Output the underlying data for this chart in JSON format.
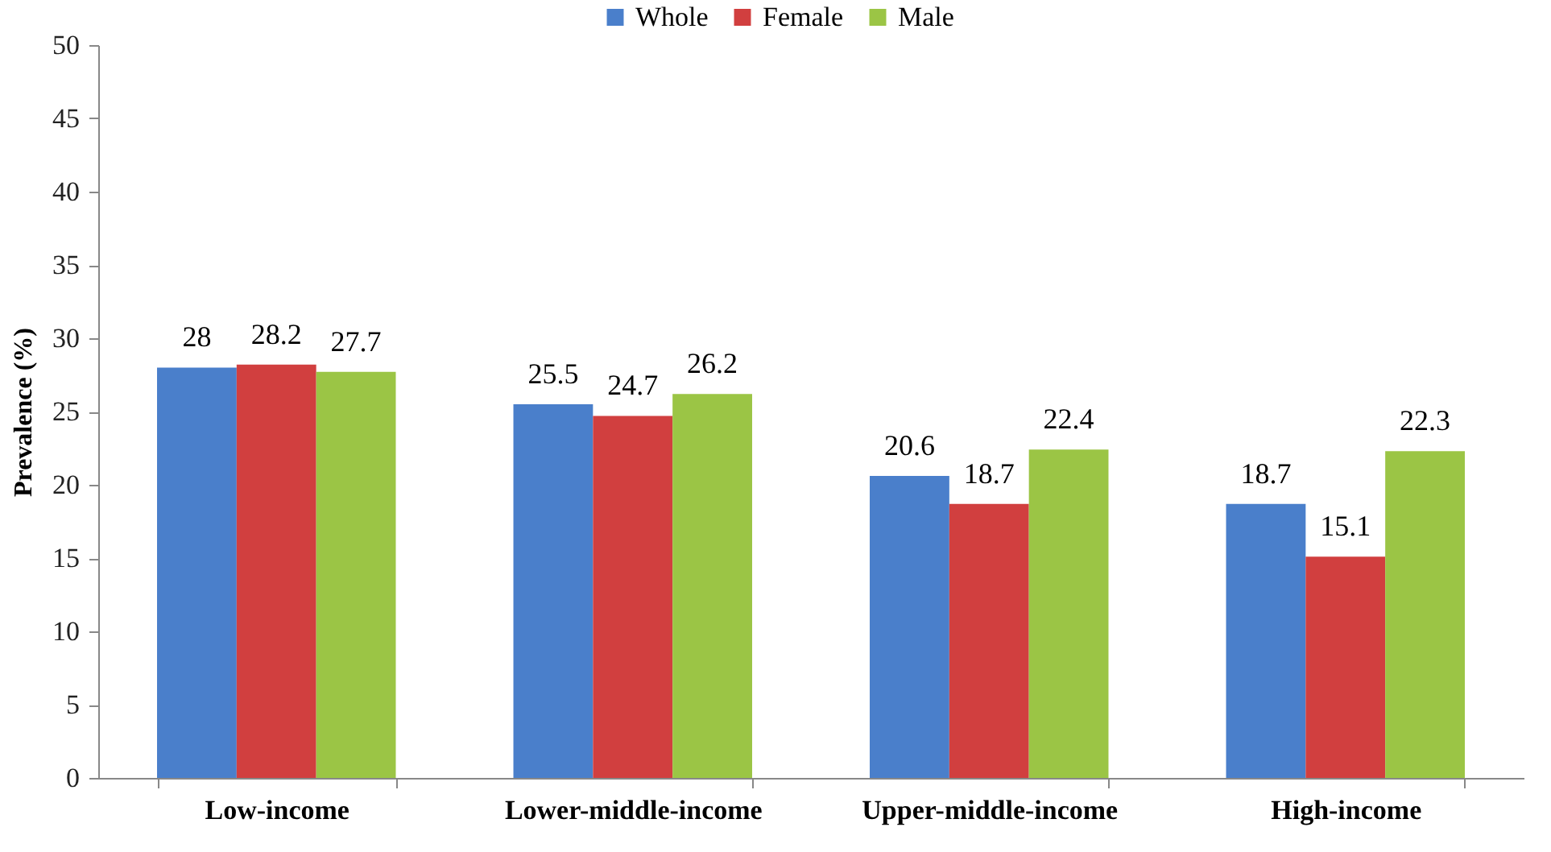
{
  "chart_data": {
    "type": "bar",
    "ylabel": "Prevalence (%)",
    "categories": [
      "Low-income",
      "Lower-middle-income",
      "Upper-middle-income",
      "High-income"
    ],
    "series": [
      {
        "name": "Whole",
        "color": "#4a7fcb",
        "values": [
          28,
          25.5,
          20.6,
          18.7
        ]
      },
      {
        "name": "Female",
        "color": "#d13f3f",
        "values": [
          28.2,
          24.7,
          18.7,
          15.1
        ]
      },
      {
        "name": "Male",
        "color": "#9bc545",
        "values": [
          27.7,
          26.2,
          22.4,
          22.3
        ]
      }
    ],
    "ylim": [
      0,
      50
    ],
    "yticks": [
      0,
      5,
      10,
      15,
      20,
      25,
      30,
      35,
      40,
      45,
      50
    ],
    "data_labels": true,
    "grid": false,
    "legend": "top"
  }
}
